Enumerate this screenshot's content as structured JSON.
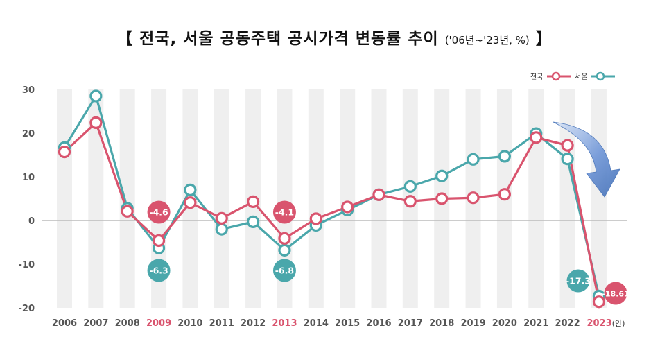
{
  "title": {
    "main": "【 전국, 서울 공동주택 공시가격 변동률 추이",
    "sub": "('06년~'23년, %)",
    "close": "】"
  },
  "chart_data": {
    "type": "line",
    "categories": [
      "2006",
      "2007",
      "2008",
      "2009",
      "2010",
      "2011",
      "2012",
      "2013",
      "2014",
      "2015",
      "2016",
      "2017",
      "2018",
      "2019",
      "2020",
      "2021",
      "2022",
      "2023"
    ],
    "category_suffix": {
      "2023": "(안)"
    },
    "highlight_categories": [
      "2009",
      "2013",
      "2023"
    ],
    "series": [
      {
        "name": "전국",
        "color": "#d9546e",
        "values": [
          15.7,
          22.4,
          2.1,
          -4.6,
          4.1,
          0.5,
          4.3,
          -4.1,
          0.4,
          3.1,
          5.9,
          4.4,
          5.0,
          5.2,
          6.0,
          19.0,
          17.2,
          -18.61
        ]
      },
      {
        "name": "서울",
        "color": "#4aa7ab",
        "values": [
          16.7,
          28.5,
          2.8,
          -6.3,
          7.0,
          -2.0,
          -0.3,
          -6.8,
          -1.1,
          2.4,
          5.9,
          7.8,
          10.2,
          14.0,
          14.7,
          19.9,
          14.1,
          -17.3
        ]
      }
    ],
    "ylim": [
      -20,
      30
    ],
    "yticks": [
      -20,
      -10,
      0,
      10,
      20,
      30
    ],
    "grid": false,
    "legend": "top-right",
    "annotations": [
      {
        "year": "2009",
        "series": "전국",
        "label": "-4.6"
      },
      {
        "year": "2009",
        "series": "서울",
        "label": "-6.3"
      },
      {
        "year": "2013",
        "series": "전국",
        "label": "-4.1"
      },
      {
        "year": "2013",
        "series": "서울",
        "label": "-6.8"
      },
      {
        "year": "2023",
        "series": "서울",
        "label": "-17.3"
      },
      {
        "year": "2023",
        "series": "전국",
        "label": "-18.61"
      }
    ],
    "colors": {
      "bar": "#efefef",
      "axis_text": "#555555",
      "highlight_text": "#d9546e",
      "zero_line": "#bbbbbb",
      "arrow": "#3f6db5"
    }
  }
}
